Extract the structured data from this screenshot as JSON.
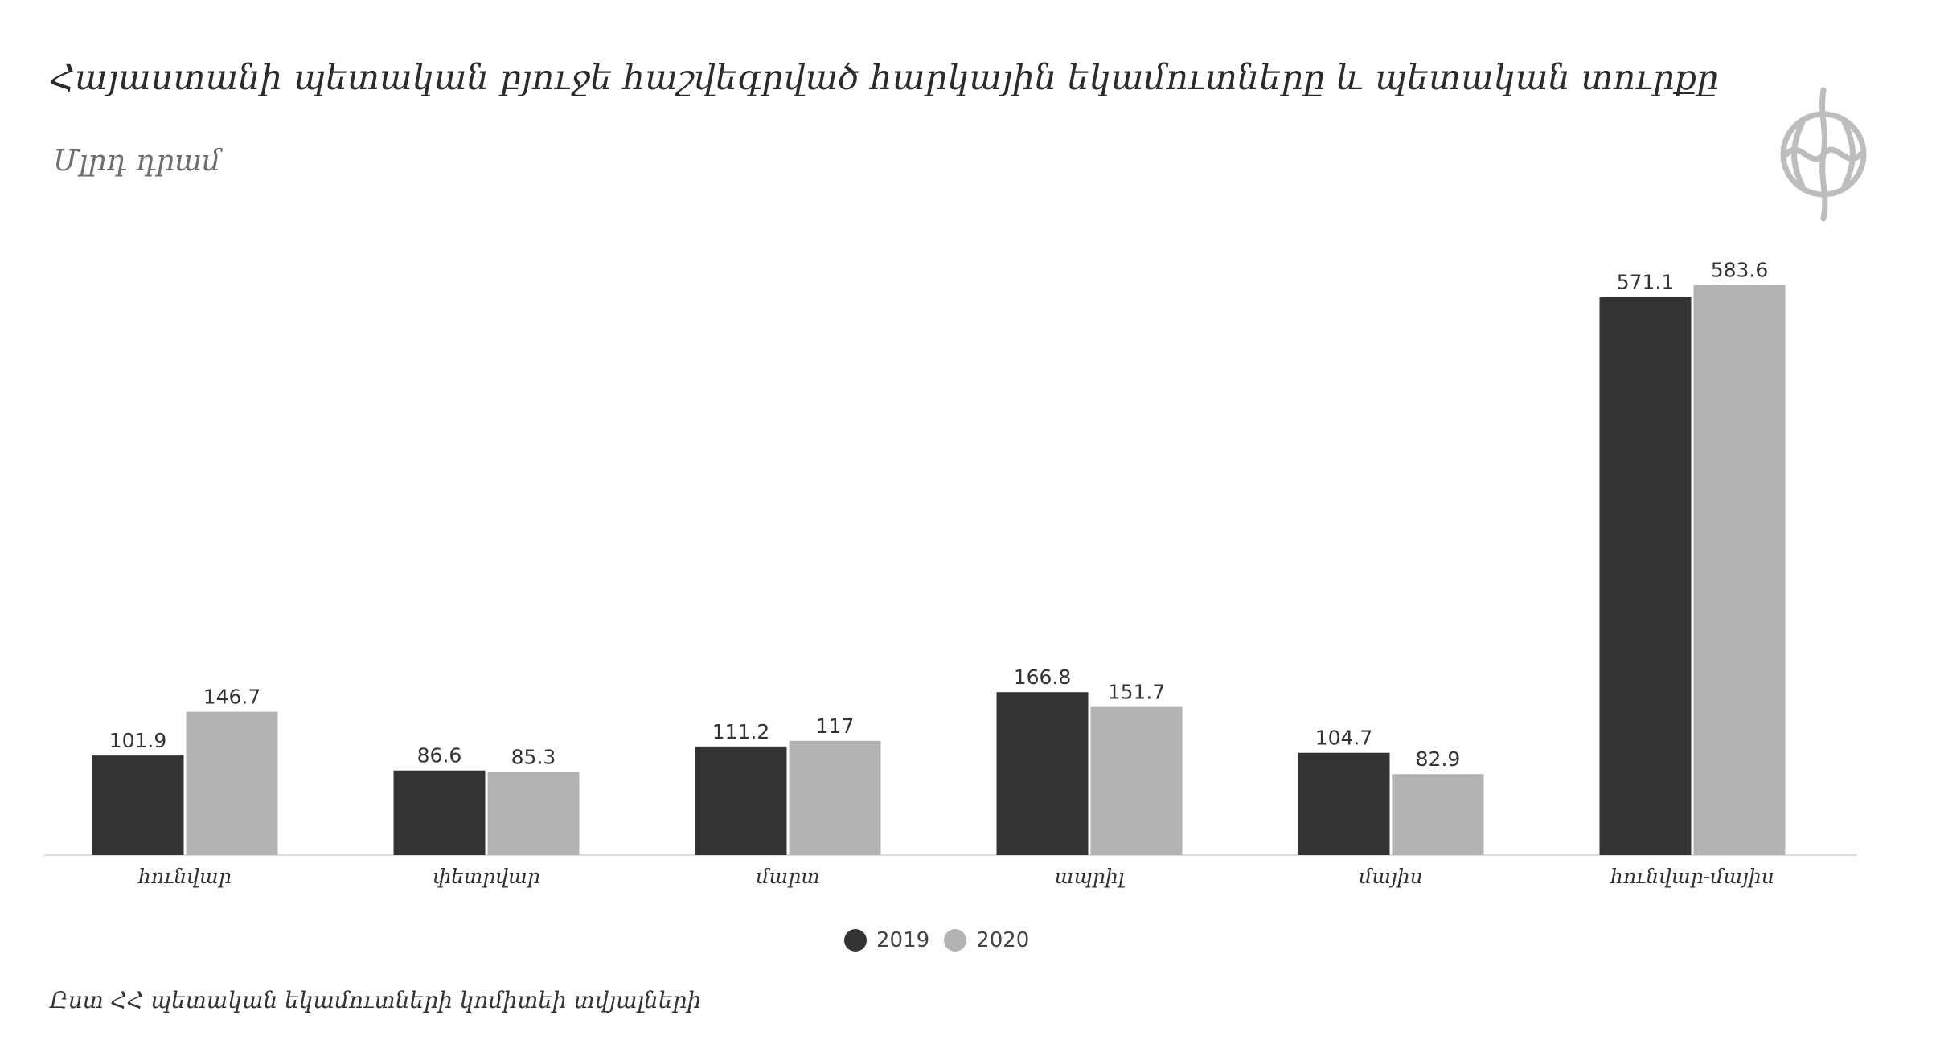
{
  "title": "Հայաստանի պետական բյուջե հաշվեգրված հարկային եկամուտները  և պետական տուրքը",
  "subtitle": "Մլրդ դրամ",
  "source": "Ըստ ՀՀ պետական եկամուտների կոմիտեի տվյալների",
  "logo_icon": "globe-emblem-icon",
  "colors": {
    "series_2019": "#333333",
    "series_2020": "#b3b3b3",
    "axis": "#d9d9d9",
    "label_text": "#333333"
  },
  "chart_data": {
    "type": "bar",
    "categories": [
      "հունվար",
      "փետրվար",
      "մարտ",
      "ապրիլ",
      "մայիս",
      "հունվար-մայիս"
    ],
    "series": [
      {
        "name": "2019",
        "values": [
          101.9,
          86.6,
          111.2,
          166.8,
          104.7,
          571.1
        ]
      },
      {
        "name": "2020",
        "values": [
          146.7,
          85.3,
          117,
          151.7,
          82.9,
          583.6
        ]
      }
    ],
    "value_labels": [
      [
        "101.9",
        "86.6",
        "111.2",
        "166.8",
        "104.7",
        "571.1"
      ],
      [
        "146.7",
        "85.3",
        "117",
        "151.7",
        "82.9",
        "583.6"
      ]
    ],
    "ylim": [
      0,
      600
    ],
    "grid": false,
    "legend_position": "bottom"
  }
}
